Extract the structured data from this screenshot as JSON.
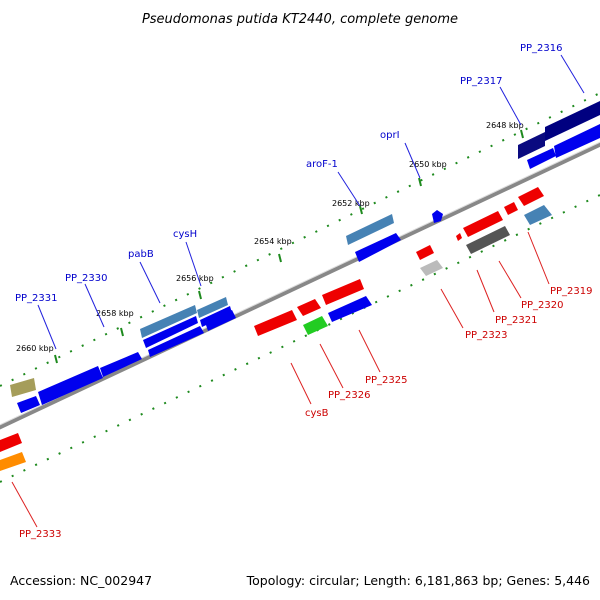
{
  "title": "Pseudomonas putida KT2440, complete genome",
  "accession_text": "Accession: NC_002947",
  "summary_text": "Topology: circular; Length: 6,181,863 bp; Genes: 5,446",
  "colors": {
    "backbone": "#8a8a8a",
    "tick": "#1e8a1e",
    "label_forward": "#0000cc",
    "label_reverse": "#cc0000",
    "leader_forward": "#2222dd",
    "leader_reverse": "#dd2222"
  },
  "kbp_ticks": [
    {
      "label": "2648 kbp"
    },
    {
      "label": "2650 kbp"
    },
    {
      "label": "2652 kbp"
    },
    {
      "label": "2654 kbp"
    },
    {
      "label": "2656 kbp"
    },
    {
      "label": "2658 kbp"
    },
    {
      "label": "2660 kbp"
    }
  ],
  "forward_labels": [
    {
      "text": "PP_2316"
    },
    {
      "text": "PP_2317"
    },
    {
      "text": "oprI"
    },
    {
      "text": "aroF-1"
    },
    {
      "text": "cysH"
    },
    {
      "text": "pabB"
    },
    {
      "text": "PP_2330"
    },
    {
      "text": "PP_2331"
    }
  ],
  "reverse_labels": [
    {
      "text": "PP_2319"
    },
    {
      "text": "PP_2320"
    },
    {
      "text": "PP_2321"
    },
    {
      "text": "PP_2323"
    },
    {
      "text": "PP_2325"
    },
    {
      "text": "PP_2326"
    },
    {
      "text": "cysB"
    },
    {
      "text": "PP_2333"
    }
  ]
}
